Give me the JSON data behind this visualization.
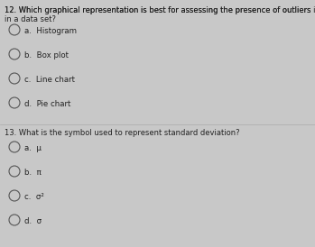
{
  "background_color": "#c8c8c8",
  "question1_number": "12.",
  "question1_text": "Which graphical representation is best for assessing the presence of outliers in a data set?",
  "question1_options": [
    "a.  Histogram",
    "b.  Box plot",
    "c.  Line chart",
    "d.  Pie chart"
  ],
  "question2_number": "13.",
  "question2_text": "What is the symbol used to represent standard deviation?",
  "question2_options": [
    "a.  μ",
    "b.  π",
    "c.  σ²",
    "d.  σ"
  ],
  "text_color": "#222222",
  "circle_color": "#555555",
  "font_size_question": 6.0,
  "font_size_option": 6.2,
  "font_size_number": 6.0
}
